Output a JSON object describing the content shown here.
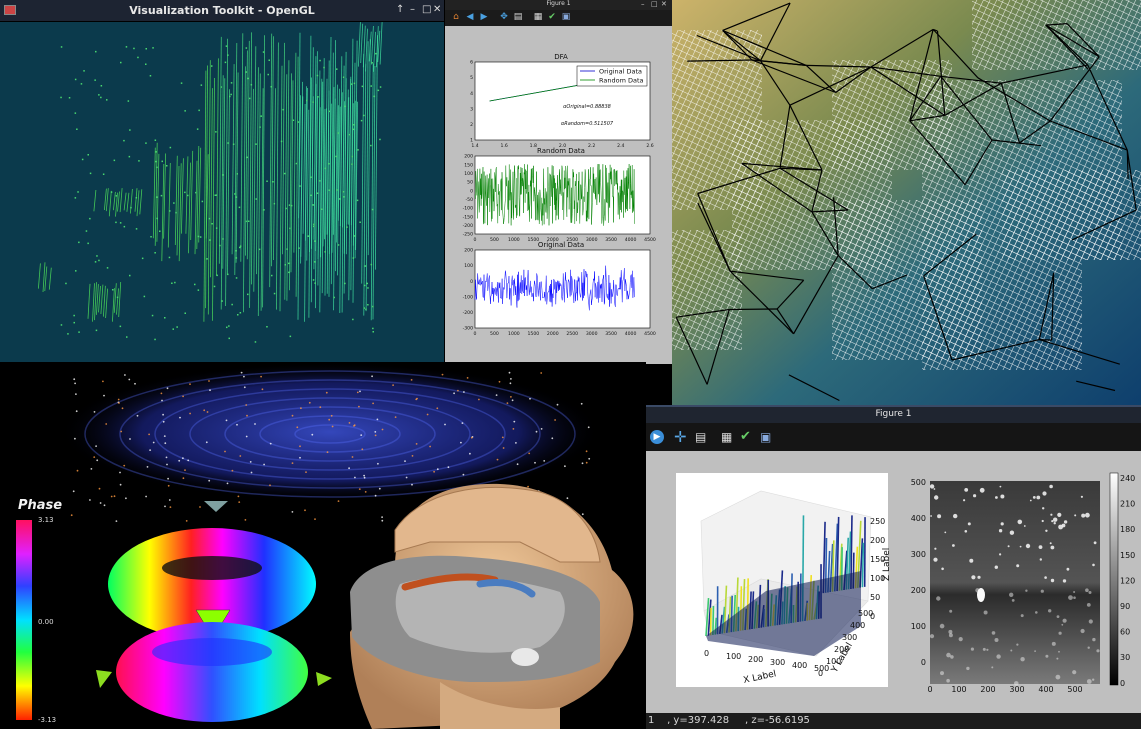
{
  "vtk_window": {
    "title": "Visualization Toolkit - OpenGL",
    "controls": [
      "↑",
      "–",
      "□",
      "✕"
    ]
  },
  "dfa_figure": {
    "window_title": "Figure 1",
    "controls": [
      "–",
      "□",
      "✕"
    ],
    "toolbar_icons": [
      "home-icon",
      "back-icon",
      "forward-icon",
      "pan-icon",
      "zoom-icon",
      "configure-icon",
      "edit-icon",
      "save-icon"
    ]
  },
  "figure_bottom": {
    "window_title": "Figure 1",
    "toolbar_icons": [
      "forward-icon",
      "pan-icon",
      "zoom-icon",
      "configure-icon",
      "edit-icon",
      "save-icon"
    ],
    "status_text": "1    , y=397.428     , z=-56.6195"
  },
  "phase_colorbar": {
    "title": "Phase",
    "max_label": "3.13",
    "mid_label": "0.00",
    "min_label": "-3.13"
  },
  "chart_data": [
    {
      "type": "line",
      "title": "DFA",
      "x": [
        1.5,
        2.4
      ],
      "series": [
        {
          "name": "Original Data",
          "color": "#0000cc",
          "values": [
            3.5,
            5.0
          ]
        },
        {
          "name": "Random Data",
          "color": "#008800",
          "values": [
            3.5,
            4.99
          ]
        }
      ],
      "xlim": [
        1.4,
        2.6
      ],
      "ylim": [
        1,
        6
      ],
      "xticks": [
        "1.4",
        "1.6",
        "1.8",
        "2.0",
        "2.2",
        "2.4",
        "2.6"
      ],
      "yticks": [
        "1",
        "2",
        "3",
        "4",
        "5",
        "6"
      ],
      "annotations": [
        "αOriginal=0.88838",
        "αRandom=0.511507"
      ],
      "legend": "top-right"
    },
    {
      "type": "line",
      "title": "Random Data",
      "series": [
        {
          "name": "Random Data",
          "color": "#008000",
          "amplitude": 150,
          "noise": "white"
        }
      ],
      "xlim": [
        0,
        4500
      ],
      "ylim": [
        -250,
        200
      ],
      "xticks": [
        "0",
        "500",
        "1000",
        "1500",
        "2000",
        "2500",
        "3000",
        "3500",
        "4000",
        "4500"
      ],
      "yticks": [
        "200",
        "150",
        "100",
        "50",
        "0",
        "-50",
        "-100",
        "-150",
        "-200",
        "-250"
      ]
    },
    {
      "type": "line",
      "title": "Original Data",
      "series": [
        {
          "name": "Original Data",
          "color": "#0000ff",
          "amplitude": 200,
          "noise": "oscillating"
        }
      ],
      "xlim": [
        0,
        4500
      ],
      "ylim": [
        -300,
        200
      ],
      "xticks": [
        "0",
        "500",
        "1000",
        "1500",
        "2000",
        "2500",
        "3000",
        "3500",
        "4000",
        "4500"
      ],
      "yticks": [
        "200",
        "100",
        "0",
        "-100",
        "-200",
        "-300"
      ]
    },
    {
      "type": "surface",
      "title": "",
      "xlabel": "X Label",
      "ylabel": "Y Label",
      "zlabel": "Z Label",
      "xticks": [
        "0",
        "100",
        "200",
        "300",
        "400",
        "500"
      ],
      "yticks": [
        "0",
        "100",
        "200",
        "300",
        "400",
        "500"
      ],
      "zticks": [
        "0",
        "50",
        "100",
        "150",
        "200",
        "250"
      ]
    },
    {
      "type": "heatmap",
      "xticks": [
        "0",
        "100",
        "200",
        "300",
        "400",
        "500"
      ],
      "yticks": [
        "500",
        "400",
        "300",
        "200",
        "100",
        "0"
      ],
      "colorbar_ticks": [
        "240",
        "210",
        "180",
        "150",
        "120",
        "90",
        "60",
        "30",
        "0"
      ],
      "cmap": "gray"
    }
  ]
}
